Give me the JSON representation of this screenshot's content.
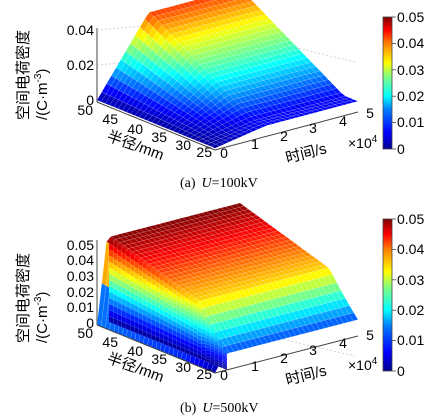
{
  "chart_data": [
    {
      "type": "surface",
      "caption": {
        "prefix": "(a)",
        "var": "U",
        "eq": "=",
        "value": "100kV"
      },
      "zlabel": {
        "line1": "空间电荷密度",
        "line2": "/(C·m",
        "sup": "-3",
        "tail": ")"
      },
      "xlabel": "时间/s",
      "x_multiplier": {
        "base": "×10",
        "exp": "4"
      },
      "ylabel": "半径/mm",
      "xlim": [
        0,
        5
      ],
      "ylim": [
        25,
        50
      ],
      "zlim": [
        0,
        0.04
      ],
      "x_ticks": [
        "0",
        "1",
        "2",
        "3",
        "4",
        "5"
      ],
      "y_ticks": [
        "50",
        "45",
        "40",
        "35",
        "30",
        "25"
      ],
      "z_ticks": [
        "0.04",
        "0.02",
        "0"
      ],
      "surface_max": 0.04,
      "colorbar": {
        "range": [
          0,
          0.05
        ],
        "ticks": [
          "0.05",
          "0.04",
          "0.03",
          "0.02",
          "0.01",
          "0"
        ]
      },
      "colormap": [
        "#00008f",
        "#0000ff",
        "#0080ff",
        "#00ffff",
        "#80ff80",
        "#ffff00",
        "#ff8000",
        "#ff0000",
        "#800000"
      ]
    },
    {
      "type": "surface",
      "caption": {
        "prefix": "(b)",
        "var": "U",
        "eq": "=",
        "value": "500kV"
      },
      "zlabel": {
        "line1": "空间电荷密度",
        "line2": "/(C·m",
        "sup": "-3",
        "tail": ")"
      },
      "xlabel": "时间/s",
      "x_multiplier": {
        "base": "×10",
        "exp": "4"
      },
      "ylabel": "半径/mm",
      "xlim": [
        0,
        5
      ],
      "ylim": [
        25,
        50
      ],
      "zlim": [
        0,
        0.05
      ],
      "x_ticks": [
        "0",
        "1",
        "2",
        "3",
        "4",
        "5"
      ],
      "y_ticks": [
        "50",
        "45",
        "40",
        "35",
        "30",
        "25"
      ],
      "z_ticks": [
        "0.05",
        "0.04",
        "0.03",
        "0.02",
        "0.01",
        "0"
      ],
      "surface_max": 0.05,
      "colorbar": {
        "range": [
          0,
          0.05
        ],
        "ticks": [
          "0.05",
          "0.04",
          "0.03",
          "0.02",
          "0.01",
          "0"
        ]
      },
      "colormap": [
        "#00008f",
        "#0000ff",
        "#0080ff",
        "#00ffff",
        "#80ff80",
        "#ffff00",
        "#ff8000",
        "#ff0000",
        "#800000"
      ]
    }
  ]
}
